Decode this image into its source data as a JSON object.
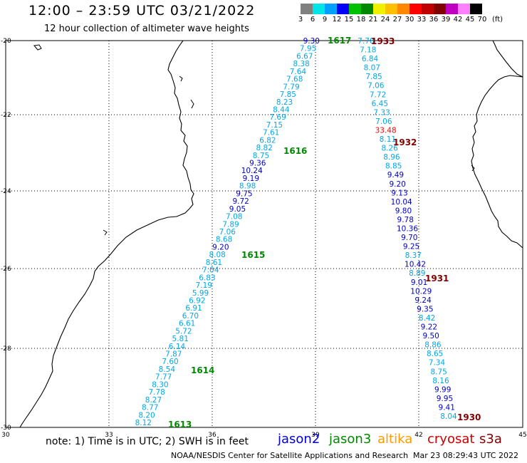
{
  "header": {
    "title": "12:00 – 23:59 UTC 03/21/2022",
    "subtitle": "12 hour collection of altimeter wave heights"
  },
  "legend": {
    "unit": "(ft)",
    "colors": [
      "#808080",
      "#00e6e6",
      "#00a0ff",
      "#0000ff",
      "#00c000",
      "#008800",
      "#f0f000",
      "#ffc000",
      "#ff8800",
      "#ff0000",
      "#c00000",
      "#800000",
      "#c000c0",
      "#ff80ff",
      "#000000"
    ],
    "labels": [
      "3",
      "6",
      "9",
      "12",
      "15",
      "18",
      "21",
      "24",
      "27",
      "30",
      "33",
      "36",
      "39",
      "42",
      "45",
      "70"
    ]
  },
  "map": {
    "lon_ticks": [
      "30",
      "33",
      "36",
      "39",
      "42",
      "45"
    ],
    "lat_ticks": [
      "-20",
      "-22",
      "-24",
      "-26",
      "-28",
      "-30"
    ]
  },
  "tracks": [
    {
      "ids": [
        "1613",
        "1614",
        "1615",
        "1616",
        "1617"
      ],
      "color": "#008800",
      "values": [
        "9.30",
        "7.95",
        "6.67",
        "8.38",
        "7.64",
        "7.68",
        "7.79",
        "7.85",
        "8.23",
        "8.44",
        "7.69",
        "7.15",
        "7.61",
        "6.82",
        "8.82",
        "8.75",
        "9.36",
        "10.24",
        "9.19",
        "8.98",
        "9.75",
        "9.72",
        "9.05",
        "7.08",
        "7.89",
        "7.06",
        "8.68",
        "9.20",
        "8.08",
        "8.61",
        "7.04",
        "6.83",
        "7.19",
        "5.99",
        "6.92",
        "6.91",
        "6.70",
        "6.61",
        "5.72",
        "5.81",
        "6.14",
        "7.87",
        "7.60",
        "8.54",
        "7.77",
        "8.30",
        "7.78",
        "8.27",
        "8.77",
        "8.20",
        "8.12"
      ]
    },
    {
      "ids": [
        "1930",
        "1931",
        "1932",
        "1933"
      ],
      "color": "#800000",
      "values": [
        "7.78",
        "7.18",
        "6.84",
        "8.07",
        "7.85",
        "7.06",
        "7.72",
        "6.45",
        "7.33",
        "7.06",
        "33.48",
        "8.11",
        "8.26",
        "8.96",
        "8.85",
        "9.49",
        "9.20",
        "9.13",
        "10.04",
        "9.80",
        "9.78",
        "10.36",
        "9.70",
        "9.25",
        "8.37",
        "10.42",
        "8.89",
        "9.01",
        "10.29",
        "9.24",
        "9.35",
        "8.42",
        "9.22",
        "9.50",
        "8.86",
        "8.65",
        "7.34",
        "8.75",
        "8.16",
        "9.99",
        "9.95",
        "9.41",
        "8.04"
      ]
    }
  ],
  "footer": {
    "note": "note: 1) Time is in UTC; 2) SWH is in feet",
    "satellites": [
      {
        "name": "jason2",
        "color": "#0000e0"
      },
      {
        "name": "jason3",
        "color": "#008800"
      },
      {
        "name": "altika",
        "color": "#ff9900"
      },
      {
        "name": "cryosat",
        "color": "#cc0000"
      },
      {
        "name": "s3a",
        "color": "#800000"
      }
    ],
    "credit": "NOAA/NESDIS Center for Satellite Applications and Research",
    "timestamp": "Mar 23 08:29:43 UTC 2022"
  }
}
